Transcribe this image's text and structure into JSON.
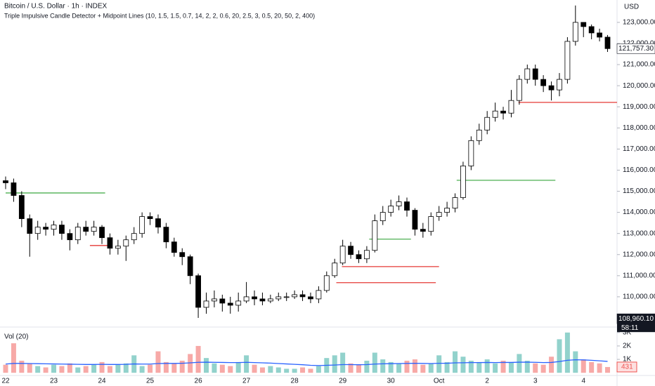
{
  "chart_data": {
    "type": "candlestick",
    "title": "Bitcoin / U.S. Dollar · 1h · INDEX",
    "subtitle": "Triple Impulsive Candle Detector + Midpoint Lines (10, 1.5, 1.5, 0.7, 14, 2, 2, 0.6, 20, 2.5, 3, 0.5, 20, 50, 2, 400)",
    "currency": "USD",
    "categories": [
      "22",
      null,
      null,
      null,
      null,
      null,
      "23",
      null,
      null,
      null,
      null,
      null,
      "24",
      null,
      null,
      null,
      null,
      null,
      "25",
      null,
      null,
      null,
      null,
      null,
      "26",
      null,
      null,
      null,
      null,
      null,
      "27",
      null,
      null,
      null,
      null,
      null,
      "28",
      null,
      null,
      null,
      null,
      null,
      "29",
      null,
      null,
      null,
      null,
      null,
      "30",
      null,
      null,
      null,
      null,
      null,
      "Oct",
      null,
      null,
      null,
      null,
      null,
      "2",
      null,
      null,
      null,
      null,
      null,
      "3",
      null,
      null,
      null,
      null,
      null,
      "4",
      null,
      null,
      null
    ],
    "open": [
      115500,
      115400,
      114800,
      113700,
      113000,
      113300,
      113200,
      113400,
      113000,
      112700,
      113300,
      113100,
      113300,
      112800,
      112300,
      112400,
      112700,
      113000,
      113800,
      113700,
      113300,
      112600,
      112100,
      111900,
      111000,
      109500,
      109800,
      109900,
      109700,
      109600,
      109800,
      110000,
      109900,
      109800,
      109900,
      110000,
      110000,
      110100,
      110000,
      109900,
      110300,
      111000,
      111600,
      112400,
      112000,
      111800,
      112200,
      113600,
      114000,
      114300,
      114500,
      114100,
      113200,
      113100,
      113800,
      114000,
      114200,
      114700,
      116200,
      117400,
      117900,
      118500,
      118800,
      118700,
      119300,
      120300,
      120800,
      120300,
      120000,
      119800,
      120300,
      122100,
      123000,
      122800,
      122500,
      122300
    ],
    "high": [
      115700,
      115600,
      115000,
      113900,
      113600,
      113500,
      113600,
      113600,
      113200,
      113500,
      113600,
      113600,
      113400,
      113000,
      112700,
      112900,
      113300,
      114000,
      114000,
      113900,
      113500,
      112800,
      112300,
      112000,
      111100,
      110200,
      110300,
      110100,
      110000,
      110200,
      110700,
      110300,
      110200,
      110100,
      110200,
      110200,
      110300,
      110300,
      110200,
      110500,
      111200,
      111800,
      112700,
      112600,
      112200,
      112400,
      113900,
      114300,
      114600,
      114800,
      114700,
      114200,
      113500,
      114000,
      114300,
      114500,
      114900,
      116400,
      117600,
      118200,
      118800,
      119200,
      119000,
      119800,
      120500,
      121000,
      121000,
      120500,
      120200,
      120600,
      122300,
      123800,
      123000,
      122900,
      122700,
      122400
    ],
    "low": [
      115100,
      114500,
      113300,
      111900,
      112700,
      112900,
      112900,
      112700,
      112200,
      112500,
      112900,
      112900,
      112500,
      112000,
      112000,
      111700,
      112500,
      112800,
      113400,
      113000,
      112300,
      111900,
      111500,
      110600,
      109000,
      109200,
      109500,
      109300,
      109200,
      109300,
      109700,
      109600,
      109600,
      109700,
      109800,
      109800,
      109900,
      109800,
      109700,
      109700,
      110200,
      110900,
      111500,
      111800,
      111600,
      111600,
      112100,
      113400,
      113800,
      114100,
      113800,
      112900,
      112800,
      112900,
      113600,
      113800,
      114000,
      114600,
      116000,
      117200,
      117700,
      118300,
      118400,
      118500,
      119100,
      120100,
      120000,
      119700,
      119300,
      119500,
      120100,
      121900,
      122300,
      122200,
      122100,
      121600
    ],
    "close": [
      115400,
      114800,
      113700,
      113000,
      113300,
      113200,
      113400,
      113000,
      112700,
      113300,
      113100,
      113300,
      112800,
      112300,
      112400,
      112700,
      113000,
      113800,
      113700,
      113300,
      112600,
      112100,
      111900,
      111000,
      109500,
      109800,
      109900,
      109700,
      109600,
      109800,
      110000,
      109900,
      109800,
      109900,
      110000,
      110000,
      110100,
      110000,
      109900,
      110300,
      111000,
      111600,
      112400,
      112000,
      111800,
      112200,
      113600,
      114000,
      114300,
      114500,
      114100,
      113200,
      113100,
      113800,
      114000,
      114200,
      114700,
      116200,
      117400,
      117900,
      118500,
      118800,
      118700,
      119300,
      120300,
      120800,
      120300,
      120000,
      119800,
      120300,
      122100,
      123000,
      122800,
      122500,
      122300,
      121757.3
    ],
    "ylim": [
      108700,
      124060
    ],
    "yticks": [
      {
        "value": 110000,
        "label": "110,000.00"
      },
      {
        "value": 111000,
        "label": "111,000.00"
      },
      {
        "value": 112000,
        "label": "112,000.00"
      },
      {
        "value": 113000,
        "label": "113,000.00"
      },
      {
        "value": 114000,
        "label": "114,000.00"
      },
      {
        "value": 115000,
        "label": "115,000.00"
      },
      {
        "value": 116000,
        "label": "116,000.00"
      },
      {
        "value": 117000,
        "label": "117,000.00"
      },
      {
        "value": 118000,
        "label": "118,000.00"
      },
      {
        "value": 119000,
        "label": "119,000.00"
      },
      {
        "value": 120000,
        "label": "120,000.00"
      },
      {
        "value": 121000,
        "label": "121,000.00"
      },
      {
        "value": 122000,
        "label": "122,000.00"
      },
      {
        "value": 123000,
        "label": "123,000.00"
      }
    ],
    "price_labels": [
      {
        "value": 121757.3,
        "label": "121,757.30",
        "color": "#ffffff",
        "text_color": "#131722"
      },
      {
        "value": 108960.1,
        "label": "108,960.10",
        "color": "#131722",
        "text_color": "#ffffff"
      }
    ],
    "countdown": "58:11",
    "up_color": "#ffffff",
    "down_color": "#000000",
    "levels": [
      {
        "value": 114920,
        "from": 0,
        "to": 12.4,
        "color": "#4caf50"
      },
      {
        "value": 112430,
        "from": 10.5,
        "to": 13,
        "color": "#e53935"
      },
      {
        "value": 111430,
        "from": 41.9,
        "to": 54,
        "color": "#e53935"
      },
      {
        "value": 110670,
        "from": 41.2,
        "to": 53.6,
        "color": "#e53935"
      },
      {
        "value": 112730,
        "from": 45.3,
        "to": 50.5,
        "color": "#4caf50"
      },
      {
        "value": 115520,
        "from": 56.2,
        "to": 68.5,
        "color": "#4caf50"
      },
      {
        "value": 119210,
        "from": 63.9,
        "to": 76.2,
        "color": "#e53935"
      }
    ],
    "volume": {
      "label": "Vol (20)",
      "values": [
        600,
        2200,
        900,
        700,
        500,
        400,
        600,
        500,
        700,
        400,
        500,
        600,
        800,
        500,
        600,
        700,
        1300,
        500,
        600,
        1600,
        800,
        700,
        900,
        1400,
        2000,
        1100,
        700,
        600,
        500,
        800,
        1300,
        600,
        400,
        500,
        400,
        300,
        300,
        400,
        300,
        500,
        1100,
        1300,
        1500,
        700,
        600,
        900,
        1500,
        1000,
        800,
        700,
        900,
        1000,
        600,
        700,
        1300,
        800,
        1600,
        1200,
        900,
        800,
        1000,
        700,
        900,
        800,
        1400,
        900,
        700,
        600,
        1200,
        2500,
        3000,
        1600,
        1000,
        800,
        700,
        431
      ],
      "ma": [
        650,
        700,
        700,
        690,
        680,
        670,
        660,
        650,
        640,
        630,
        620,
        620,
        630,
        620,
        620,
        630,
        660,
        650,
        650,
        690,
        700,
        700,
        710,
        740,
        780,
        790,
        780,
        770,
        760,
        760,
        780,
        760,
        740,
        720,
        690,
        660,
        630,
        600,
        560,
        540,
        560,
        580,
        610,
        610,
        600,
        610,
        650,
        670,
        680,
        690,
        700,
        710,
        700,
        690,
        710,
        710,
        740,
        750,
        760,
        760,
        770,
        760,
        770,
        770,
        790,
        790,
        780,
        760,
        770,
        840,
        930,
        970,
        960,
        930,
        890,
        850
      ],
      "ma_color": "#2962ff",
      "up_color": "#26a69a",
      "down_color": "#ef5350",
      "last_label": "431",
      "ylim": [
        -200,
        3200
      ],
      "yticks": [
        {
          "value": 1000,
          "label": "1K"
        },
        {
          "value": 2000,
          "label": "2K"
        },
        {
          "value": 3000,
          "label": "3K"
        }
      ]
    }
  }
}
